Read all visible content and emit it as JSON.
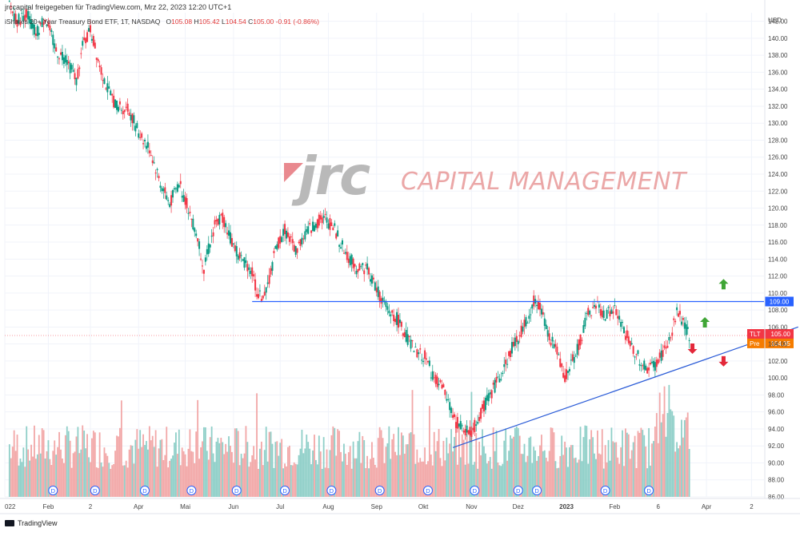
{
  "header": {
    "share_text": "jrccapital freigegeben für TradingView.com, Mrz 22, 2023 12:20 UTC+1",
    "legend": {
      "name": "iShares 20+ Year Treasury Bond ETF, 1T, NASDAQ",
      "o_label": "O",
      "o": "105.08",
      "h_label": "H",
      "h": "105.42",
      "l_label": "L",
      "l": "104.54",
      "c_label": "C",
      "c": "105.00",
      "chg": "-0.91 (-0.86%)"
    }
  },
  "brand": {
    "mark": "jrc",
    "name": "CAPITAL MANAGEMENT"
  },
  "footer": {
    "text": "TradingView"
  },
  "colors": {
    "up": "#089981",
    "down": "#f23645",
    "vol_up": "#8fcfc8",
    "vol_down": "#f2a7a7",
    "level_line": "#2962ff",
    "trend_line": "#2a5bd7",
    "tlt_badge": "#f23645",
    "pre_badge": "#f57c00",
    "level_badge": "#2962ff",
    "arrow_up": "#3fa535",
    "arrow_down": "#e3283a"
  },
  "chart_data": {
    "type": "candlestick",
    "currency": "USD",
    "ylim": [
      86,
      143
    ],
    "y_ticks": [
      142,
      140,
      138,
      136,
      134,
      132,
      130,
      128,
      126,
      124,
      122,
      120,
      118,
      116,
      114,
      112,
      110,
      108,
      106,
      104,
      102,
      100,
      98,
      96,
      94,
      92,
      90,
      88,
      86
    ],
    "y_tick_labels": [
      "142.00",
      "140.00",
      "138.00",
      "136.00",
      "134.00",
      "132.00",
      "130.00",
      "128.00",
      "126.00",
      "124.00",
      "122.00",
      "120.00",
      "118.00",
      "116.00",
      "114.00",
      "112.00",
      "110.00",
      "108.00",
      "106.00",
      "104.00",
      "102.00",
      "100.00",
      "98.00",
      "96.00",
      "94.00",
      "92.00",
      "90.00",
      "88.00",
      "86.00"
    ],
    "x_ticks": [
      {
        "label": "022",
        "day": 0
      },
      {
        "label": "Feb",
        "day": 28
      },
      {
        "label": "2",
        "day": 55
      },
      {
        "label": "Apr",
        "day": 86
      },
      {
        "label": "Mai",
        "day": 116
      },
      {
        "label": "Jun",
        "day": 147
      },
      {
        "label": "Jul",
        "day": 177
      },
      {
        "label": "Aug",
        "day": 208
      },
      {
        "label": "Sep",
        "day": 239
      },
      {
        "label": "Okt",
        "day": 269
      },
      {
        "label": "Nov",
        "day": 300
      },
      {
        "label": "Dez",
        "day": 330
      },
      {
        "label": "2023",
        "day": 361
      },
      {
        "label": "Feb",
        "day": 392
      },
      {
        "label": "6",
        "day": 420
      },
      {
        "label": "Apr",
        "day": 451
      },
      {
        "label": "2",
        "day": 480
      }
    ],
    "first_day": 3,
    "last_day": 440,
    "price_path": [
      [
        3,
        144
      ],
      [
        8,
        142
      ],
      [
        14,
        143
      ],
      [
        20,
        140.5
      ],
      [
        26,
        142.5
      ],
      [
        33,
        138.5
      ],
      [
        40,
        137.5
      ],
      [
        46,
        135
      ],
      [
        50,
        139
      ],
      [
        55,
        141
      ],
      [
        60,
        137.5
      ],
      [
        66,
        134
      ],
      [
        72,
        132
      ],
      [
        80,
        131.5
      ],
      [
        86,
        129
      ],
      [
        93,
        127
      ],
      [
        100,
        123
      ],
      [
        106,
        120.5
      ],
      [
        112,
        123
      ],
      [
        118,
        120
      ],
      [
        124,
        116.5
      ],
      [
        128,
        113
      ],
      [
        135,
        118
      ],
      [
        140,
        119
      ],
      [
        146,
        116
      ],
      [
        152,
        114
      ],
      [
        158,
        113
      ],
      [
        163,
        109.5
      ],
      [
        168,
        110
      ],
      [
        174,
        115
      ],
      [
        180,
        117.5
      ],
      [
        187,
        115
      ],
      [
        193,
        117
      ],
      [
        199,
        118
      ],
      [
        205,
        119
      ],
      [
        212,
        117.5
      ],
      [
        218,
        115
      ],
      [
        226,
        113
      ],
      [
        233,
        113
      ],
      [
        240,
        110
      ],
      [
        246,
        108
      ],
      [
        252,
        107
      ],
      [
        258,
        105
      ],
      [
        264,
        103
      ],
      [
        270,
        102.5
      ],
      [
        276,
        100
      ],
      [
        282,
        98.5
      ],
      [
        289,
        95
      ],
      [
        294,
        94
      ],
      [
        300,
        93.5
      ],
      [
        305,
        95.5
      ],
      [
        312,
        98
      ],
      [
        319,
        100.5
      ],
      [
        326,
        103.5
      ],
      [
        331,
        105
      ],
      [
        336,
        107
      ],
      [
        340,
        109
      ],
      [
        345,
        108
      ],
      [
        350,
        105
      ],
      [
        355,
        103
      ],
      [
        360,
        100
      ],
      [
        365,
        102
      ],
      [
        370,
        104.5
      ],
      [
        375,
        107.5
      ],
      [
        380,
        108.5
      ],
      [
        386,
        107.5
      ],
      [
        392,
        108
      ],
      [
        397,
        106
      ],
      [
        402,
        104
      ],
      [
        407,
        102.5
      ],
      [
        412,
        101
      ],
      [
        418,
        101.5
      ],
      [
        423,
        103
      ],
      [
        428,
        104.5
      ],
      [
        432,
        108
      ],
      [
        436,
        106.5
      ],
      [
        440,
        105
      ]
    ],
    "horizontal_levels": [
      {
        "value": 109.0,
        "label": "109.00",
        "from_day": 159,
        "to_day": 530
      }
    ],
    "trend_lines": [
      {
        "from": [
          288,
          91.8
        ],
        "to": [
          510,
          106.0
        ]
      }
    ],
    "price_badges": [
      {
        "symbol": "TLT",
        "value": 105.0,
        "label": "105.00",
        "kind": "last"
      },
      {
        "symbol": "Pre",
        "value": 104.35,
        "label": "104.35",
        "kind": "pre"
      }
    ],
    "arrows": [
      {
        "dir": "up",
        "day": 462,
        "value": 111.0
      },
      {
        "dir": "up",
        "day": 450,
        "value": 106.5
      },
      {
        "dir": "down",
        "day": 442,
        "value": 103.5
      },
      {
        "dir": "down",
        "day": 462,
        "value": 102.0
      }
    ],
    "dividend_markers_days": [
      31,
      58,
      90,
      120,
      149,
      180,
      210,
      241,
      272,
      302,
      330,
      342,
      386,
      414
    ],
    "dividend_label": "D",
    "volume": {
      "axis": "none",
      "max_relative": 1.0,
      "spike_days": [
        75,
        124,
        162,
        262,
        273,
        300,
        421,
        424,
        427
      ]
    }
  }
}
